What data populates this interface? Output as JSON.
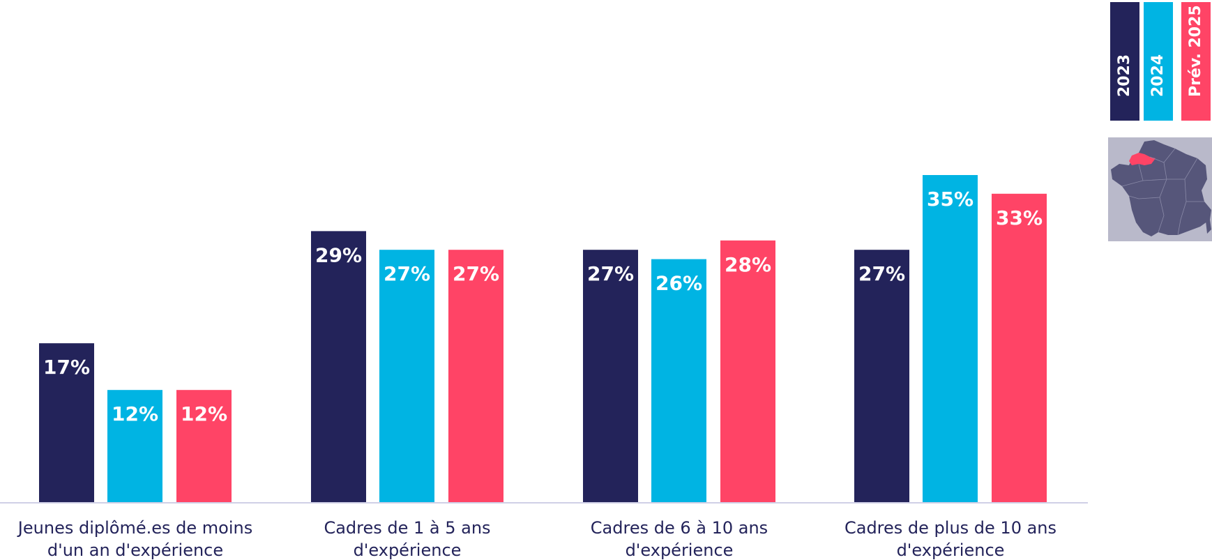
{
  "colors": {
    "2023": "#23235a",
    "2024": "#00b4e3",
    "Prév. 2025": "#ff4466",
    "axis": "#cfcfe6",
    "map_background": "#b9b9ca",
    "map_land": "#56567a",
    "map_highlight": "#ff4466"
  },
  "legend": {
    "items": [
      {
        "label": "2023",
        "color": "#23235a"
      },
      {
        "label": "2024",
        "color": "#00b4e3"
      },
      {
        "label": "Prév. 2025",
        "color": "#ff4466"
      }
    ]
  },
  "map": {
    "icon": "france-map-normandie-highlighted"
  },
  "chart_data": {
    "type": "bar",
    "categories": [
      [
        "Jeunes diplômé.es de moins",
        "d'un an d'expérience"
      ],
      [
        "Cadres de 1 à 5 ans",
        "d'expérience"
      ],
      [
        "Cadres de 6 à 10 ans",
        "d'expérience"
      ],
      [
        "Cadres de plus de 10 ans",
        "d'expérience"
      ]
    ],
    "series": [
      {
        "name": "2023",
        "values": [
          17,
          29,
          27,
          27
        ],
        "labels": [
          "17%",
          "29%",
          "27%",
          "27%"
        ]
      },
      {
        "name": "2024",
        "values": [
          12,
          27,
          26,
          35
        ],
        "labels": [
          "12%",
          "27%",
          "26%",
          "35%"
        ]
      },
      {
        "name": "Prév. 2025",
        "values": [
          12,
          27,
          28,
          33
        ],
        "labels": [
          "12%",
          "27%",
          "28%",
          "33%"
        ]
      }
    ],
    "ylim": [
      0,
      38
    ],
    "grid": false,
    "legend_position": "right"
  }
}
